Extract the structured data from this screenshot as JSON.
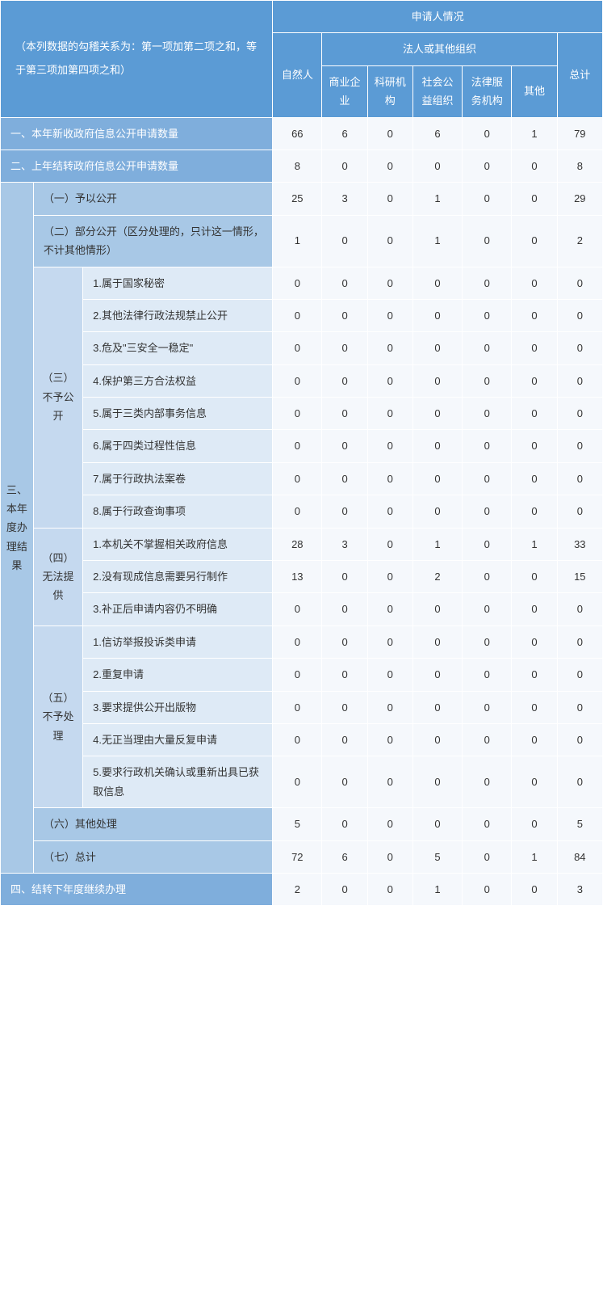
{
  "note": "（本列数据的勾稽关系为：第一项加第二项之和，等于第三项加第四项之和）",
  "header": {
    "applicant": "申请人情况",
    "natural": "自然人",
    "legal_group": "法人或其他组织",
    "legal_cols": [
      "商业企业",
      "科研机构",
      "社会公益组织",
      "法律服务机构",
      "其他"
    ],
    "total": "总计"
  },
  "row1": {
    "label": "一、本年新收政府信息公开申请数量",
    "v": [
      "66",
      "6",
      "0",
      "6",
      "0",
      "1",
      "79"
    ]
  },
  "row2": {
    "label": "二、上年结转政府信息公开申请数量",
    "v": [
      "8",
      "0",
      "0",
      "0",
      "0",
      "0",
      "8"
    ]
  },
  "sec3_label": "三、本年度办理结果",
  "s3": {
    "p1": {
      "label": "（一）予以公开",
      "v": [
        "25",
        "3",
        "0",
        "1",
        "0",
        "0",
        "29"
      ]
    },
    "p2": {
      "label": "（二）部分公开（区分处理的，只计这一情形，不计其他情形）",
      "v": [
        "1",
        "0",
        "0",
        "1",
        "0",
        "0",
        "2"
      ]
    },
    "p3": {
      "label": "（三）不予公开",
      "items": [
        {
          "label": "1.属于国家秘密",
          "v": [
            "0",
            "0",
            "0",
            "0",
            "0",
            "0",
            "0"
          ]
        },
        {
          "label": "2.其他法律行政法规禁止公开",
          "v": [
            "0",
            "0",
            "0",
            "0",
            "0",
            "0",
            "0"
          ]
        },
        {
          "label": "3.危及\"三安全一稳定\"",
          "v": [
            "0",
            "0",
            "0",
            "0",
            "0",
            "0",
            "0"
          ]
        },
        {
          "label": "4.保护第三方合法权益",
          "v": [
            "0",
            "0",
            "0",
            "0",
            "0",
            "0",
            "0"
          ]
        },
        {
          "label": "5.属于三类内部事务信息",
          "v": [
            "0",
            "0",
            "0",
            "0",
            "0",
            "0",
            "0"
          ]
        },
        {
          "label": "6.属于四类过程性信息",
          "v": [
            "0",
            "0",
            "0",
            "0",
            "0",
            "0",
            "0"
          ]
        },
        {
          "label": "7.属于行政执法案卷",
          "v": [
            "0",
            "0",
            "0",
            "0",
            "0",
            "0",
            "0"
          ]
        },
        {
          "label": "8.属于行政查询事项",
          "v": [
            "0",
            "0",
            "0",
            "0",
            "0",
            "0",
            "0"
          ]
        }
      ]
    },
    "p4": {
      "label": "（四）无法提供",
      "items": [
        {
          "label": "1.本机关不掌握相关政府信息",
          "v": [
            "28",
            "3",
            "0",
            "1",
            "0",
            "1",
            "33"
          ]
        },
        {
          "label": "2.没有现成信息需要另行制作",
          "v": [
            "13",
            "0",
            "0",
            "2",
            "0",
            "0",
            "15"
          ]
        },
        {
          "label": "3.补正后申请内容仍不明确",
          "v": [
            "0",
            "0",
            "0",
            "0",
            "0",
            "0",
            "0"
          ]
        }
      ]
    },
    "p5": {
      "label": "（五）不予处理",
      "items": [
        {
          "label": "1.信访举报投诉类申请",
          "v": [
            "0",
            "0",
            "0",
            "0",
            "0",
            "0",
            "0"
          ]
        },
        {
          "label": "2.重复申请",
          "v": [
            "0",
            "0",
            "0",
            "0",
            "0",
            "0",
            "0"
          ]
        },
        {
          "label": "3.要求提供公开出版物",
          "v": [
            "0",
            "0",
            "0",
            "0",
            "0",
            "0",
            "0"
          ]
        },
        {
          "label": "4.无正当理由大量反复申请",
          "v": [
            "0",
            "0",
            "0",
            "0",
            "0",
            "0",
            "0"
          ]
        },
        {
          "label": "5.要求行政机关确认或重新出具已获取信息",
          "v": [
            "0",
            "0",
            "0",
            "0",
            "0",
            "0",
            "0"
          ]
        }
      ]
    },
    "p6": {
      "label": "（六）其他处理",
      "v": [
        "5",
        "0",
        "0",
        "0",
        "0",
        "0",
        "5"
      ]
    },
    "p7": {
      "label": "（七）总计",
      "v": [
        "72",
        "6",
        "0",
        "5",
        "0",
        "1",
        "84"
      ]
    }
  },
  "row4": {
    "label": "四、结转下年度继续办理",
    "v": [
      "2",
      "0",
      "0",
      "1",
      "0",
      "0",
      "3"
    ]
  },
  "colors": {
    "hdr_dark": "#5b9bd5",
    "hdr_med": "#7faedc",
    "hdr_lt1": "#a8c8e6",
    "hdr_lt2": "#c5d9ef",
    "hdr_lt3": "#deeaf6",
    "data": "#f5f8fc",
    "border": "#ffffff"
  },
  "font": {
    "family": "Microsoft YaHei",
    "size_pt": 10
  }
}
